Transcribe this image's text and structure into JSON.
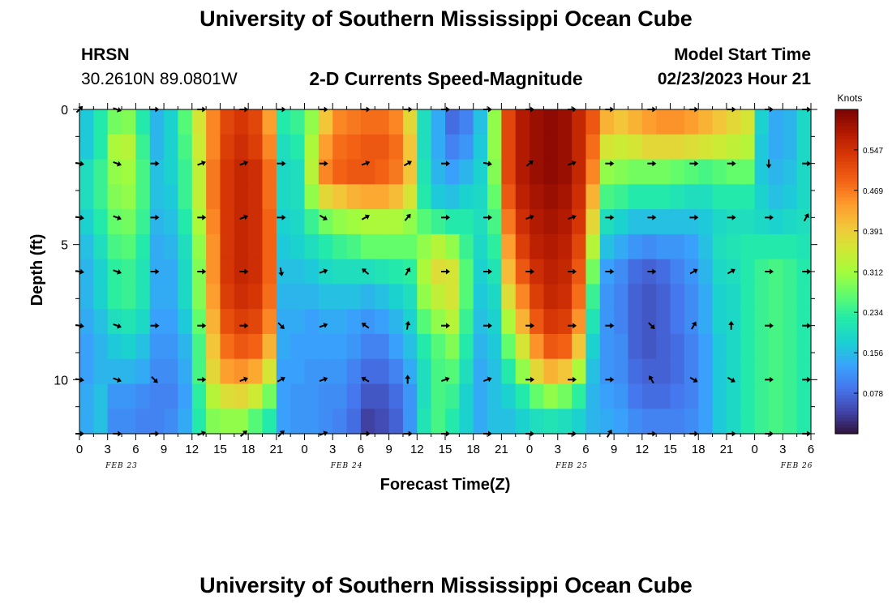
{
  "header": {
    "title": "University of Southern Mississippi Ocean Cube",
    "station": "HRSN",
    "coordinates": "30.2610N  89.0801W",
    "subtitle": "2-D Currents Speed-Magnitude",
    "model_start_label": "Model Start Time",
    "model_start_value": "02/23/2023 Hour 21"
  },
  "footer": {
    "title": "University of Southern Mississippi Ocean Cube"
  },
  "chart_data": {
    "type": "heatmap",
    "title": "2-D Currents Speed-Magnitude",
    "xlabel": "Forecast Time(Z)",
    "ylabel": "Depth (ft)",
    "x_tick_labels": [
      "0",
      "3",
      "6",
      "9",
      "12",
      "15",
      "18",
      "21",
      "0",
      "3",
      "6",
      "9",
      "12",
      "15",
      "18",
      "21",
      "0",
      "3",
      "6",
      "9",
      "12",
      "15",
      "18",
      "21",
      "0",
      "3",
      "6"
    ],
    "date_labels": [
      {
        "label": "FEB 23",
        "hour": 4.5
      },
      {
        "label": "FEB 24",
        "hour": 28.5
      },
      {
        "label": "FEB 25",
        "hour": 52.5
      },
      {
        "label": "FEB 26",
        "hour": 76.5
      }
    ],
    "xlim_hours": [
      0,
      78
    ],
    "ylim_depth_ft": [
      0,
      12
    ],
    "y_ticks": [
      0,
      5,
      10
    ],
    "colorbar": {
      "title": "Knots",
      "vmin": 0.0,
      "vmax": 0.625,
      "tick_values": [
        0.078,
        0.156,
        0.234,
        0.312,
        0.391,
        0.469,
        0.547
      ],
      "tick_labels": [
        "0.078",
        "0.156",
        "0.234",
        "0.312",
        "0.391",
        "0.469",
        "0.547"
      ]
    },
    "column_width_hours": 1.5,
    "columns": [
      {
        "h": 0,
        "d": [
          0.17,
          0.17,
          0.2,
          0.2,
          0.18,
          0.16,
          0.15,
          0.15,
          0.14,
          0.13,
          0.13,
          0.14,
          0.14
        ]
      },
      {
        "h": 1.5,
        "d": [
          0.22,
          0.22,
          0.24,
          0.24,
          0.22,
          0.2,
          0.18,
          0.18,
          0.16,
          0.15,
          0.15,
          0.16,
          0.16
        ]
      },
      {
        "h": 3,
        "d": [
          0.28,
          0.32,
          0.3,
          0.29,
          0.27,
          0.25,
          0.23,
          0.23,
          0.2,
          0.17,
          0.15,
          0.12,
          0.11
        ]
      },
      {
        "h": 4.5,
        "d": [
          0.29,
          0.33,
          0.31,
          0.3,
          0.28,
          0.26,
          0.24,
          0.24,
          0.21,
          0.18,
          0.15,
          0.12,
          0.11
        ]
      },
      {
        "h": 6,
        "d": [
          0.22,
          0.24,
          0.25,
          0.25,
          0.24,
          0.22,
          0.21,
          0.21,
          0.19,
          0.16,
          0.14,
          0.11,
          0.1
        ]
      },
      {
        "h": 7.5,
        "d": [
          0.15,
          0.15,
          0.16,
          0.16,
          0.15,
          0.14,
          0.14,
          0.14,
          0.13,
          0.12,
          0.11,
          0.1,
          0.1
        ]
      },
      {
        "h": 9,
        "d": [
          0.18,
          0.18,
          0.18,
          0.17,
          0.16,
          0.15,
          0.14,
          0.14,
          0.13,
          0.12,
          0.11,
          0.1,
          0.11
        ]
      },
      {
        "h": 10.5,
        "d": [
          0.26,
          0.25,
          0.24,
          0.24,
          0.22,
          0.2,
          0.19,
          0.19,
          0.17,
          0.15,
          0.14,
          0.13,
          0.14
        ]
      },
      {
        "h": 12,
        "d": [
          0.36,
          0.35,
          0.34,
          0.34,
          0.32,
          0.3,
          0.29,
          0.29,
          0.27,
          0.25,
          0.25,
          0.23,
          0.22
        ]
      },
      {
        "h": 13.5,
        "d": [
          0.46,
          0.46,
          0.47,
          0.47,
          0.46,
          0.45,
          0.45,
          0.44,
          0.42,
          0.4,
          0.38,
          0.33,
          0.29
        ]
      },
      {
        "h": 15,
        "d": [
          0.52,
          0.53,
          0.54,
          0.54,
          0.54,
          0.54,
          0.54,
          0.53,
          0.51,
          0.48,
          0.44,
          0.37,
          0.3
        ]
      },
      {
        "h": 16.5,
        "d": [
          0.54,
          0.55,
          0.56,
          0.56,
          0.56,
          0.56,
          0.56,
          0.55,
          0.53,
          0.5,
          0.45,
          0.38,
          0.3
        ]
      },
      {
        "h": 18,
        "d": [
          0.52,
          0.53,
          0.55,
          0.55,
          0.55,
          0.55,
          0.55,
          0.54,
          0.52,
          0.49,
          0.43,
          0.35,
          0.26
        ]
      },
      {
        "h": 19.5,
        "d": [
          0.44,
          0.46,
          0.48,
          0.48,
          0.49,
          0.49,
          0.49,
          0.48,
          0.46,
          0.42,
          0.36,
          0.28,
          0.22
        ]
      },
      {
        "h": 21,
        "d": [
          0.22,
          0.2,
          0.19,
          0.19,
          0.18,
          0.17,
          0.16,
          0.15,
          0.14,
          0.14,
          0.13,
          0.13,
          0.13
        ]
      },
      {
        "h": 22.5,
        "d": [
          0.24,
          0.22,
          0.2,
          0.2,
          0.19,
          0.18,
          0.16,
          0.15,
          0.14,
          0.13,
          0.13,
          0.12,
          0.12
        ]
      },
      {
        "h": 24,
        "d": [
          0.3,
          0.32,
          0.33,
          0.3,
          0.24,
          0.2,
          0.17,
          0.15,
          0.13,
          0.13,
          0.12,
          0.12,
          0.12
        ]
      },
      {
        "h": 25.5,
        "d": [
          0.4,
          0.44,
          0.46,
          0.38,
          0.28,
          0.22,
          0.19,
          0.16,
          0.14,
          0.13,
          0.12,
          0.11,
          0.11
        ]
      },
      {
        "h": 27,
        "d": [
          0.46,
          0.48,
          0.49,
          0.4,
          0.3,
          0.24,
          0.2,
          0.16,
          0.14,
          0.13,
          0.12,
          0.11,
          0.1
        ]
      },
      {
        "h": 28.5,
        "d": [
          0.47,
          0.49,
          0.5,
          0.42,
          0.31,
          0.25,
          0.2,
          0.16,
          0.13,
          0.12,
          0.1,
          0.09,
          0.08
        ]
      },
      {
        "h": 30,
        "d": [
          0.48,
          0.5,
          0.5,
          0.43,
          0.32,
          0.27,
          0.2,
          0.15,
          0.12,
          0.1,
          0.08,
          0.06,
          0.04
        ]
      },
      {
        "h": 31.5,
        "d": [
          0.48,
          0.5,
          0.49,
          0.43,
          0.32,
          0.27,
          0.21,
          0.16,
          0.13,
          0.1,
          0.08,
          0.06,
          0.05
        ]
      },
      {
        "h": 33,
        "d": [
          0.46,
          0.48,
          0.47,
          0.41,
          0.32,
          0.27,
          0.22,
          0.18,
          0.15,
          0.13,
          0.1,
          0.08,
          0.07
        ]
      },
      {
        "h": 34.5,
        "d": [
          0.38,
          0.4,
          0.4,
          0.36,
          0.3,
          0.27,
          0.23,
          0.2,
          0.18,
          0.16,
          0.14,
          0.12,
          0.12
        ]
      },
      {
        "h": 36,
        "d": [
          0.2,
          0.2,
          0.21,
          0.22,
          0.26,
          0.3,
          0.32,
          0.3,
          0.26,
          0.22,
          0.2,
          0.2,
          0.21
        ]
      },
      {
        "h": 37.5,
        "d": [
          0.14,
          0.14,
          0.15,
          0.17,
          0.24,
          0.33,
          0.37,
          0.34,
          0.3,
          0.26,
          0.25,
          0.25,
          0.25
        ]
      },
      {
        "h": 39,
        "d": [
          0.08,
          0.1,
          0.13,
          0.16,
          0.22,
          0.3,
          0.36,
          0.36,
          0.33,
          0.29,
          0.26,
          0.24,
          0.22
        ]
      },
      {
        "h": 40.5,
        "d": [
          0.1,
          0.12,
          0.15,
          0.18,
          0.22,
          0.24,
          0.26,
          0.26,
          0.24,
          0.22,
          0.2,
          0.18,
          0.18
        ]
      },
      {
        "h": 42,
        "d": [
          0.16,
          0.17,
          0.18,
          0.19,
          0.2,
          0.19,
          0.18,
          0.17,
          0.16,
          0.15,
          0.14,
          0.14,
          0.14
        ]
      },
      {
        "h": 43.5,
        "d": [
          0.3,
          0.3,
          0.29,
          0.27,
          0.25,
          0.23,
          0.21,
          0.19,
          0.18,
          0.17,
          0.16,
          0.16,
          0.16
        ]
      },
      {
        "h": 45,
        "d": [
          0.52,
          0.52,
          0.52,
          0.5,
          0.47,
          0.44,
          0.41,
          0.37,
          0.32,
          0.27,
          0.22,
          0.18,
          0.16
        ]
      },
      {
        "h": 46.5,
        "d": [
          0.58,
          0.58,
          0.58,
          0.57,
          0.55,
          0.53,
          0.5,
          0.46,
          0.42,
          0.36,
          0.3,
          0.22,
          0.18
        ]
      },
      {
        "h": 48,
        "d": [
          0.6,
          0.6,
          0.6,
          0.59,
          0.58,
          0.57,
          0.55,
          0.53,
          0.5,
          0.45,
          0.38,
          0.27,
          0.2
        ]
      },
      {
        "h": 49.5,
        "d": [
          0.61,
          0.61,
          0.61,
          0.6,
          0.59,
          0.58,
          0.57,
          0.56,
          0.54,
          0.5,
          0.42,
          0.3,
          0.21
        ]
      },
      {
        "h": 51,
        "d": [
          0.6,
          0.6,
          0.6,
          0.59,
          0.58,
          0.57,
          0.56,
          0.55,
          0.53,
          0.49,
          0.4,
          0.28,
          0.2
        ]
      },
      {
        "h": 52.5,
        "d": [
          0.56,
          0.56,
          0.56,
          0.55,
          0.54,
          0.52,
          0.5,
          0.48,
          0.45,
          0.4,
          0.32,
          0.23,
          0.18
        ]
      },
      {
        "h": 54,
        "d": [
          0.5,
          0.48,
          0.46,
          0.42,
          0.38,
          0.33,
          0.28,
          0.24,
          0.21,
          0.18,
          0.16,
          0.15,
          0.15
        ]
      },
      {
        "h": 55.5,
        "d": [
          0.42,
          0.36,
          0.3,
          0.25,
          0.2,
          0.16,
          0.13,
          0.12,
          0.12,
          0.12,
          0.12,
          0.13,
          0.14
        ]
      },
      {
        "h": 57,
        "d": [
          0.4,
          0.35,
          0.29,
          0.24,
          0.18,
          0.14,
          0.11,
          0.1,
          0.1,
          0.11,
          0.11,
          0.12,
          0.13
        ]
      },
      {
        "h": 58.5,
        "d": [
          0.42,
          0.36,
          0.28,
          0.22,
          0.16,
          0.12,
          0.08,
          0.07,
          0.07,
          0.07,
          0.08,
          0.09,
          0.11
        ]
      },
      {
        "h": 60,
        "d": [
          0.44,
          0.38,
          0.28,
          0.22,
          0.16,
          0.11,
          0.07,
          0.06,
          0.06,
          0.06,
          0.07,
          0.08,
          0.1
        ]
      },
      {
        "h": 61.5,
        "d": [
          0.45,
          0.38,
          0.28,
          0.22,
          0.16,
          0.12,
          0.08,
          0.07,
          0.07,
          0.07,
          0.07,
          0.08,
          0.1
        ]
      },
      {
        "h": 63,
        "d": [
          0.45,
          0.38,
          0.27,
          0.21,
          0.16,
          0.12,
          0.1,
          0.09,
          0.09,
          0.08,
          0.08,
          0.09,
          0.1
        ]
      },
      {
        "h": 64.5,
        "d": [
          0.44,
          0.37,
          0.26,
          0.2,
          0.16,
          0.13,
          0.12,
          0.11,
          0.11,
          0.1,
          0.1,
          0.1,
          0.11
        ]
      },
      {
        "h": 66,
        "d": [
          0.42,
          0.36,
          0.25,
          0.2,
          0.17,
          0.16,
          0.15,
          0.14,
          0.14,
          0.13,
          0.13,
          0.13,
          0.13
        ]
      },
      {
        "h": 67.5,
        "d": [
          0.4,
          0.35,
          0.26,
          0.22,
          0.19,
          0.2,
          0.19,
          0.18,
          0.18,
          0.17,
          0.17,
          0.17,
          0.17
        ]
      },
      {
        "h": 69,
        "d": [
          0.38,
          0.34,
          0.27,
          0.22,
          0.2,
          0.21,
          0.2,
          0.19,
          0.19,
          0.19,
          0.19,
          0.19,
          0.19
        ]
      },
      {
        "h": 70.5,
        "d": [
          0.36,
          0.33,
          0.27,
          0.22,
          0.2,
          0.22,
          0.22,
          0.22,
          0.22,
          0.22,
          0.22,
          0.22,
          0.22
        ]
      },
      {
        "h": 72,
        "d": [
          0.18,
          0.17,
          0.17,
          0.18,
          0.19,
          0.22,
          0.24,
          0.24,
          0.24,
          0.24,
          0.24,
          0.24,
          0.24
        ]
      },
      {
        "h": 73.5,
        "d": [
          0.14,
          0.14,
          0.15,
          0.16,
          0.18,
          0.22,
          0.25,
          0.25,
          0.25,
          0.25,
          0.25,
          0.25,
          0.25
        ]
      },
      {
        "h": 75,
        "d": [
          0.15,
          0.15,
          0.16,
          0.17,
          0.19,
          0.22,
          0.24,
          0.24,
          0.24,
          0.24,
          0.24,
          0.24,
          0.24
        ]
      },
      {
        "h": 76.5,
        "d": [
          0.19,
          0.19,
          0.19,
          0.19,
          0.2,
          0.21,
          0.22,
          0.22,
          0.22,
          0.22,
          0.22,
          0.22,
          0.22
        ]
      }
    ],
    "arrow_depths_ft": [
      0,
      2,
      4,
      6,
      8,
      10,
      12
    ],
    "arrows": [
      {
        "h": 0,
        "a": [
          315,
          10,
          10,
          10,
          10,
          10,
          0
        ]
      },
      {
        "h": 4,
        "a": [
          20,
          20,
          20,
          20,
          20,
          20,
          0
        ]
      },
      {
        "h": 8,
        "a": [
          0,
          0,
          0,
          0,
          0,
          45,
          0
        ]
      },
      {
        "h": 13,
        "a": [
          0,
          340,
          0,
          0,
          0,
          0,
          340
        ]
      },
      {
        "h": 17.5,
        "a": [
          0,
          340,
          340,
          0,
          0,
          340,
          320
        ]
      },
      {
        "h": 21.5,
        "a": [
          0,
          0,
          0,
          80,
          45,
          330,
          315
        ]
      },
      {
        "h": 26,
        "a": [
          0,
          0,
          30,
          340,
          340,
          340,
          340
        ]
      },
      {
        "h": 30.5,
        "a": [
          0,
          340,
          330,
          220,
          215,
          210,
          0
        ]
      },
      {
        "h": 35,
        "a": [
          0,
          330,
          310,
          300,
          280,
          270,
          0
        ]
      },
      {
        "h": 39,
        "a": [
          0,
          0,
          0,
          0,
          0,
          340,
          0
        ]
      },
      {
        "h": 43.5,
        "a": [
          0,
          10,
          0,
          0,
          0,
          340,
          0
        ]
      },
      {
        "h": 48,
        "a": [
          0,
          320,
          340,
          0,
          0,
          0,
          0
        ]
      },
      {
        "h": 52.5,
        "a": [
          0,
          340,
          340,
          0,
          0,
          0,
          0
        ]
      },
      {
        "h": 56.5,
        "a": [
          0,
          0,
          0,
          0,
          0,
          0,
          300
        ]
      },
      {
        "h": 61,
        "a": [
          0,
          0,
          0,
          0,
          45,
          240,
          0
        ]
      },
      {
        "h": 65.5,
        "a": [
          0,
          0,
          0,
          330,
          300,
          30,
          0
        ]
      },
      {
        "h": 69.5,
        "a": [
          0,
          0,
          0,
          330,
          270,
          30,
          0
        ]
      },
      {
        "h": 73.5,
        "a": [
          0,
          90,
          0,
          0,
          0,
          0,
          0
        ]
      },
      {
        "h": 77.5,
        "a": [
          0,
          0,
          300,
          0,
          0,
          0,
          0
        ]
      }
    ]
  }
}
